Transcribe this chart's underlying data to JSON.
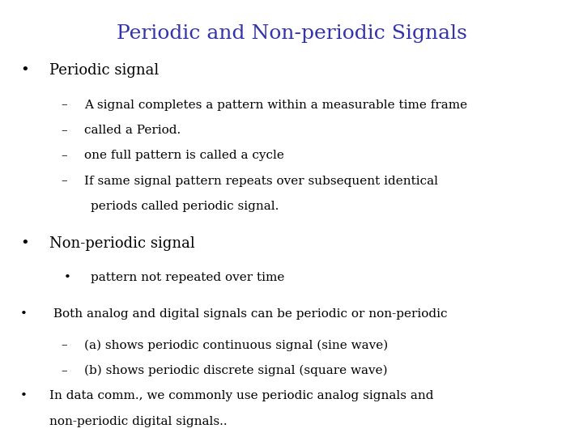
{
  "title": "Periodic and Non-periodic Signals",
  "title_color": "#3333AA",
  "title_fontsize": 18,
  "background_color": "#FFFFFF",
  "text_color": "#000000",
  "body_fontsize": 11,
  "large_fontsize": 13,
  "lines": [
    {
      "type": "bullet1",
      "text": "Periodic signal",
      "fontsize": 13
    },
    {
      "type": "dash",
      "text": "A signal completes a pattern within a measurable time frame",
      "fontsize": 11
    },
    {
      "type": "dash",
      "text": "called a Period.",
      "fontsize": 11
    },
    {
      "type": "dash",
      "text": "one full pattern is called a cycle",
      "fontsize": 11
    },
    {
      "type": "dash_line1",
      "text": "If same signal pattern repeats over subsequent identical",
      "fontsize": 11
    },
    {
      "type": "dash_line2",
      "text": "periods called periodic signal.",
      "fontsize": 11
    },
    {
      "type": "bullet1",
      "text": "Non-periodic signal",
      "fontsize": 13
    },
    {
      "type": "bullet2",
      "text": "pattern not repeated over time",
      "fontsize": 11
    },
    {
      "type": "bullet1",
      "text": " Both analog and digital signals can be periodic or non-periodic",
      "fontsize": 11
    },
    {
      "type": "dash",
      "text": "(a) shows periodic continuous signal (sine wave)",
      "fontsize": 11
    },
    {
      "type": "dash",
      "text": "(b) shows periodic discrete signal (square wave)",
      "fontsize": 11
    },
    {
      "type": "bullet1_wrap_line1",
      "text": "In data comm., we commonly use periodic analog signals and",
      "fontsize": 11
    },
    {
      "type": "bullet1_wrap_line2",
      "text": "non-periodic digital signals..",
      "fontsize": 11
    }
  ]
}
